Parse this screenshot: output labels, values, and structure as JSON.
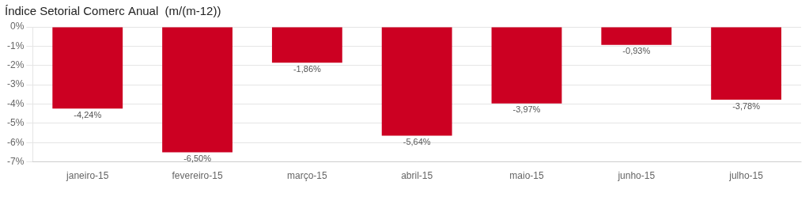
{
  "chart_data": {
    "type": "bar",
    "title": "Índice Setorial Comerc Anual  (m/(m-12))",
    "categories": [
      "janeiro-15",
      "fevereiro-15",
      "março-15",
      "abril-15",
      "maio-15",
      "junho-15",
      "julho-15"
    ],
    "values": [
      -4.24,
      -6.5,
      -1.86,
      -5.64,
      -3.97,
      -0.93,
      -3.78
    ],
    "value_labels": [
      "-4,24%",
      "-6,50%",
      "-1,86%",
      "-5,64%",
      "-3,97%",
      "-0,93%",
      "-3,78%"
    ],
    "data_labels": true,
    "color": "#cc0022",
    "ylim": [
      -7,
      0
    ],
    "yticks": [
      {
        "value": 0,
        "label": "0%"
      },
      {
        "value": -1,
        "label": "-1%"
      },
      {
        "value": -2,
        "label": "-2%"
      },
      {
        "value": -3,
        "label": "-3%"
      },
      {
        "value": -4,
        "label": "-4%"
      },
      {
        "value": -5,
        "label": "-5%"
      },
      {
        "value": -6,
        "label": "-6%"
      },
      {
        "value": -7,
        "label": "-7%"
      }
    ],
    "grid": true
  }
}
